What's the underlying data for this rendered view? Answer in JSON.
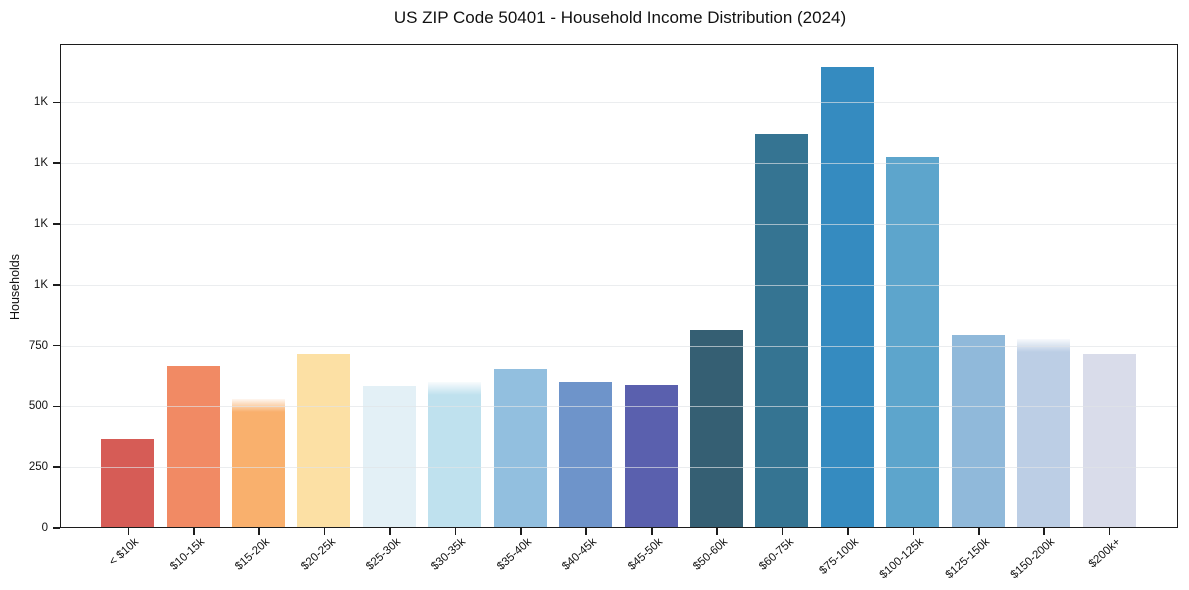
{
  "title": "US ZIP Code 50401 - Household Income Distribution (2024)",
  "chart_data": {
    "type": "bar",
    "title": "US ZIP Code 50401 - Household Income Distribution (2024)",
    "xlabel": "",
    "ylabel": "Households",
    "ylim": [
      0,
      1990
    ],
    "grid": true,
    "legend": "none",
    "y_ticks": [
      {
        "value": 0,
        "label": "0"
      },
      {
        "value": 250,
        "label": "250"
      },
      {
        "value": 500,
        "label": "500"
      },
      {
        "value": 750,
        "label": "750"
      },
      {
        "value": 1000,
        "label": "1K"
      },
      {
        "value": 1250,
        "label": "1K"
      },
      {
        "value": 1500,
        "label": "1K"
      },
      {
        "value": 1750,
        "label": "1K"
      }
    ],
    "categories": [
      "< $10k",
      "$10-15k",
      "$15-20k",
      "$20-25k",
      "$25-30k",
      "$30-35k",
      "$35-40k",
      "$40-45k",
      "$45-50k",
      "$50-60k",
      "$60-75k",
      "$75-100k",
      "$100-125k",
      "$125-150k",
      "$150-200k",
      "$200k+"
    ],
    "values": [
      360,
      660,
      525,
      710,
      580,
      595,
      650,
      595,
      585,
      810,
      1615,
      1890,
      1520,
      790,
      775,
      710
    ],
    "bar_colors": [
      "#d65c56",
      "#f18a64",
      "#f9b06d",
      "#fce0a4",
      "#e3f0f6",
      "#bfe1ee",
      "#92bfdf",
      "#6e94ca",
      "#5a60ae",
      "#355f73",
      "#357492",
      "#358bc0",
      "#5da5cc",
      "#90b9da",
      "#bccee5",
      "#d9dcea"
    ],
    "soft_top_bar_indices": [
      2,
      5,
      14
    ]
  }
}
